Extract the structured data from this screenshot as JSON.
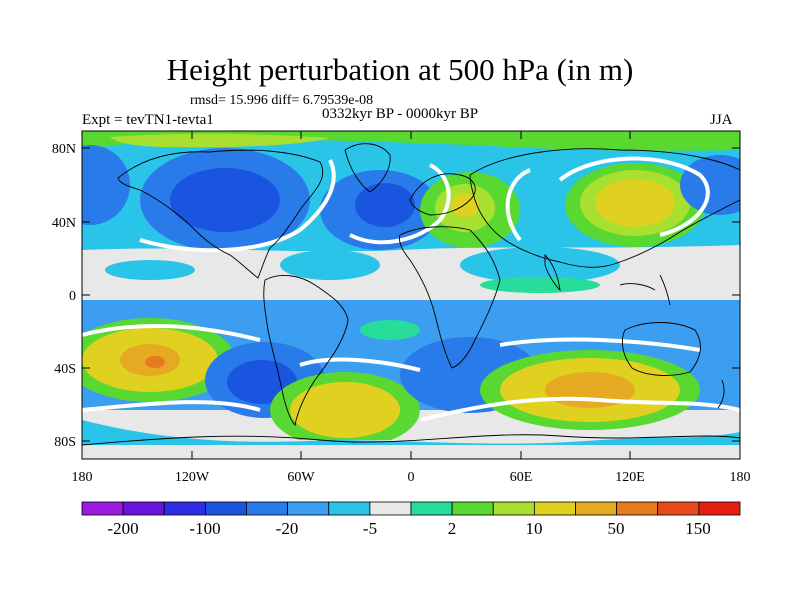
{
  "title": "Height perturbation at 500 hPa (in m)",
  "stats": {
    "rmsd_line": "rmsd= 15.996 diff= 6.79539e-08"
  },
  "left_label": "Expt = tevTN1-tevta1",
  "center_label": "0332kyr BP - 0000kyr BP",
  "right_label": "JJA",
  "map": {
    "lat_ticks": [
      "80N",
      "40N",
      "0",
      "40S",
      "80S"
    ],
    "lon_ticks": [
      "180",
      "120W",
      "60W",
      "0",
      "60E",
      "120E",
      "180"
    ]
  },
  "colorbar": {
    "colors": [
      "#9b1ce0",
      "#6a14dc",
      "#2d2ee6",
      "#1a55e0",
      "#2a7bea",
      "#3b9ef0",
      "#2ac4e8",
      "#e8e8e8",
      "#28dc9a",
      "#58d830",
      "#a8e030",
      "#e0d020",
      "#e6aa22",
      "#e67a1e",
      "#e64a1a",
      "#e61e12"
    ],
    "labels": [
      "-200",
      "-100",
      "-20",
      "-5",
      "2",
      "10",
      "50",
      "150"
    ]
  }
}
